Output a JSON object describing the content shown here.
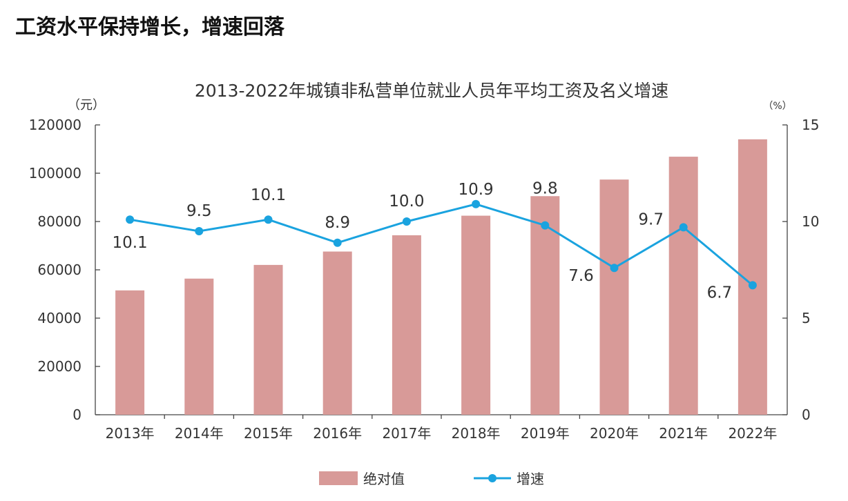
{
  "page": {
    "heading": "工资水平保持增长，增速回落"
  },
  "chart_data": {
    "type": "bar+line",
    "title": "2013-2022年城镇非私营单位就业人员年平均工资及名义增速",
    "categories": [
      "2013年",
      "2014年",
      "2015年",
      "2016年",
      "2017年",
      "2018年",
      "2019年",
      "2020年",
      "2021年",
      "2022年"
    ],
    "left_axis": {
      "unit": "（元）",
      "ylim": [
        0,
        120000
      ],
      "ticks": [
        "0",
        "20000",
        "40000",
        "60000",
        "80000",
        "100000",
        "120000"
      ]
    },
    "right_axis": {
      "unit": "（%）",
      "ylim": [
        0,
        15
      ],
      "ticks": [
        "0",
        "5",
        "10",
        "15"
      ]
    },
    "series": [
      {
        "name": "绝对值",
        "type": "bar",
        "axis": "left",
        "color": "#d89a98",
        "values": [
          51483,
          56360,
          62029,
          67569,
          74318,
          82413,
          90501,
          97379,
          106837,
          114029
        ]
      },
      {
        "name": "增速",
        "type": "line",
        "axis": "right",
        "color": "#1aa3df",
        "values": [
          10.1,
          9.5,
          10.1,
          8.9,
          10.0,
          10.9,
          9.8,
          7.6,
          9.7,
          6.7
        ],
        "labels": [
          "10.1",
          "9.5",
          "10.1",
          "8.9",
          "10.0",
          "10.9",
          "9.8",
          "7.6",
          "9.7",
          "6.7"
        ]
      }
    ],
    "grid": false,
    "legend_position": "bottom"
  }
}
